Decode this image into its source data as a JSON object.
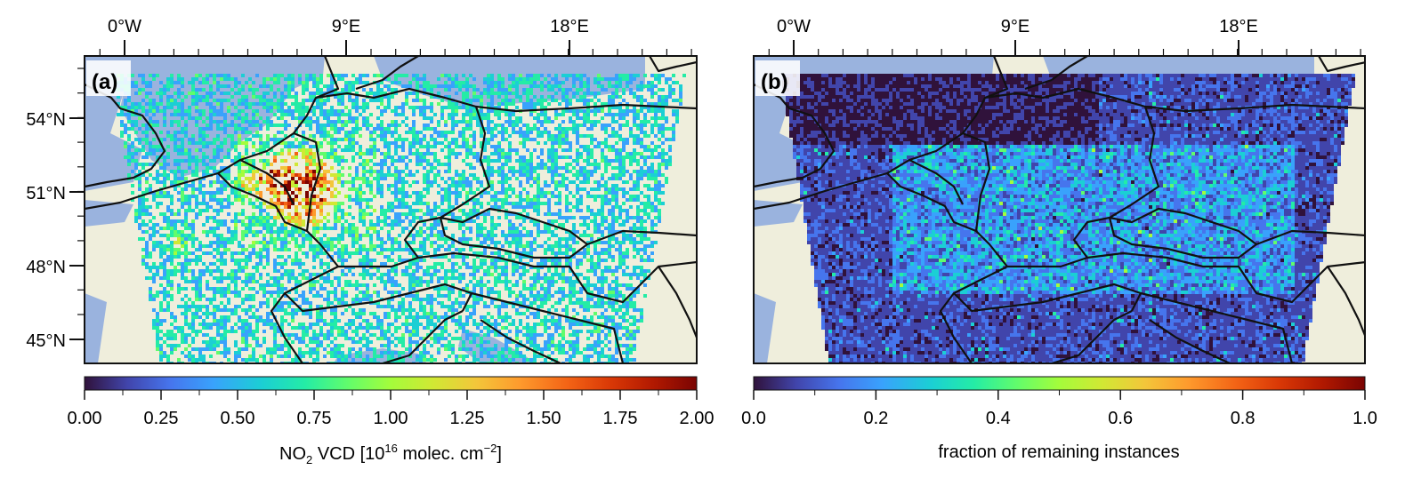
{
  "panels": [
    {
      "id": "a",
      "label": "(a)",
      "lon_ticks": [
        "0°W",
        "9°E",
        "18°E"
      ],
      "lat_ticks": [
        "54°N",
        "51°N",
        "48°N",
        "45°N"
      ],
      "colorbar": {
        "ticks": [
          "0.00",
          "0.25",
          "0.50",
          "0.75",
          "1.00",
          "1.25",
          "1.50",
          "1.75",
          "2.00"
        ],
        "range": [
          0,
          2
        ],
        "label_main": "NO",
        "label_sub": "2",
        "label_mid": " VCD [10",
        "label_sup1": "16",
        "label_mid2": " molec. cm",
        "label_sup2": "−2",
        "label_end": "]"
      }
    },
    {
      "id": "b",
      "label": "(b)",
      "lon_ticks": [
        "0°W",
        "9°E",
        "18°E"
      ],
      "lat_ticks": [],
      "colorbar": {
        "ticks": [
          "0.0",
          "0.2",
          "0.4",
          "0.6",
          "0.8",
          "1.0"
        ],
        "range": [
          0,
          1
        ],
        "label": "fraction of remaining instances"
      }
    }
  ],
  "colors": {
    "land": "#efeedc",
    "ocean": "#9ab3de",
    "border": "#111111",
    "colormap": [
      "#30123b",
      "#4145ab",
      "#4675ed",
      "#39a2fc",
      "#1bcfd4",
      "#24eca6",
      "#61fc6c",
      "#a4fc3b",
      "#d1e834",
      "#f3c63a",
      "#fe9b2d",
      "#f36315",
      "#d93806",
      "#b11901",
      "#7a0402"
    ]
  }
}
